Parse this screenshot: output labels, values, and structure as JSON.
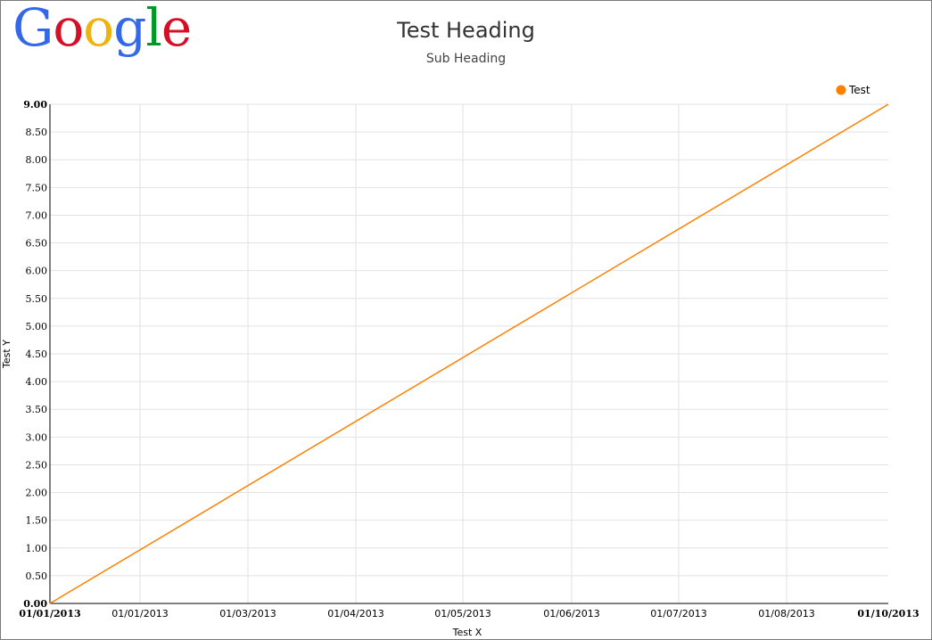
{
  "logo": {
    "letters": [
      "G",
      "o",
      "o",
      "g",
      "l",
      "e"
    ],
    "colors": [
      "#3369e8",
      "#d50f25",
      "#eeb211",
      "#3369e8",
      "#009925",
      "#d50f25"
    ]
  },
  "title": "Test Heading",
  "subtitle": "Sub Heading",
  "chart_data": {
    "type": "line",
    "title": "Test Heading",
    "subtitle": "Sub Heading",
    "xlabel": "Test X",
    "ylabel": "Test Y",
    "x_tick_labels": [
      "01/01/2013",
      "01/01/2013",
      "01/03/2013",
      "01/04/2013",
      "01/05/2013",
      "01/06/2013",
      "01/07/2013",
      "01/08/2013",
      "01/10/2013"
    ],
    "bold_x_ticks": [
      0,
      8
    ],
    "y_tick_labels": [
      "0.00",
      "0.50",
      "1.00",
      "1.50",
      "2.00",
      "2.50",
      "3.00",
      "3.50",
      "4.00",
      "4.50",
      "5.00",
      "5.50",
      "6.00",
      "6.50",
      "7.00",
      "7.50",
      "8.00",
      "8.50",
      "9.00"
    ],
    "ylim": [
      0,
      9
    ],
    "xlim": [
      "2013-01-01",
      "2013-10-01"
    ],
    "grid": true,
    "legend_position": "top-right",
    "series": [
      {
        "name": "Test",
        "color": "#ff8000",
        "x": [
          "2013-01-01",
          "2013-10-01"
        ],
        "y": [
          0,
          9
        ]
      }
    ]
  }
}
